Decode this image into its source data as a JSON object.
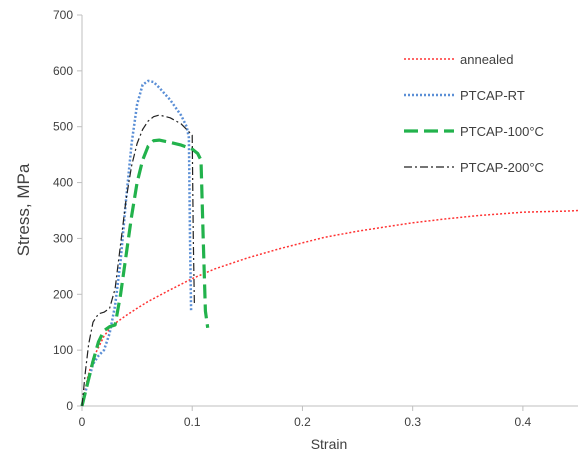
{
  "chart_data": {
    "type": "line",
    "title": "",
    "xlabel": "Strain",
    "ylabel": "Stress, MPa",
    "xlim": [
      0,
      0.45
    ],
    "ylim": [
      0,
      700
    ],
    "x_ticks": [
      "0",
      "0.1",
      "0.2",
      "0.3",
      "0.4"
    ],
    "y_ticks": [
      "0",
      "100",
      "200",
      "300",
      "400",
      "500",
      "600",
      "700"
    ],
    "grid": false,
    "legend_position": "top-right",
    "series": [
      {
        "name": "annealed",
        "color": "#ff3333",
        "style": "dotted-red",
        "points": [
          [
            0,
            0
          ],
          [
            0.005,
            50
          ],
          [
            0.01,
            85
          ],
          [
            0.015,
            105
          ],
          [
            0.02,
            125
          ],
          [
            0.025,
            138
          ],
          [
            0.03,
            148
          ],
          [
            0.04,
            162
          ],
          [
            0.05,
            175
          ],
          [
            0.06,
            187
          ],
          [
            0.08,
            208
          ],
          [
            0.1,
            228
          ],
          [
            0.12,
            245
          ],
          [
            0.15,
            265
          ],
          [
            0.18,
            282
          ],
          [
            0.2,
            292
          ],
          [
            0.22,
            302
          ],
          [
            0.25,
            313
          ],
          [
            0.28,
            322
          ],
          [
            0.3,
            328
          ],
          [
            0.33,
            335
          ],
          [
            0.36,
            341
          ],
          [
            0.38,
            344
          ],
          [
            0.4,
            347
          ],
          [
            0.42,
            348
          ],
          [
            0.44,
            349
          ],
          [
            0.45,
            350
          ]
        ]
      },
      {
        "name": "PTCAP-RT",
        "color": "#5b8fd6",
        "style": "dotted-blue",
        "points": [
          [
            0,
            0
          ],
          [
            0.005,
            40
          ],
          [
            0.01,
            75
          ],
          [
            0.015,
            90
          ],
          [
            0.02,
            100
          ],
          [
            0.025,
            130
          ],
          [
            0.03,
            180
          ],
          [
            0.035,
            260
          ],
          [
            0.04,
            370
          ],
          [
            0.045,
            470
          ],
          [
            0.05,
            540
          ],
          [
            0.055,
            575
          ],
          [
            0.06,
            582
          ],
          [
            0.065,
            580
          ],
          [
            0.07,
            570
          ],
          [
            0.08,
            548
          ],
          [
            0.09,
            520
          ],
          [
            0.095,
            500
          ],
          [
            0.097,
            480
          ],
          [
            0.098,
            300
          ],
          [
            0.099,
            170
          ]
        ]
      },
      {
        "name": "PTCAP-100°C",
        "color": "#22b24c",
        "style": "dashed-green",
        "points": [
          [
            0,
            0
          ],
          [
            0.005,
            40
          ],
          [
            0.01,
            80
          ],
          [
            0.015,
            115
          ],
          [
            0.02,
            135
          ],
          [
            0.025,
            142
          ],
          [
            0.03,
            145
          ],
          [
            0.035,
            200
          ],
          [
            0.04,
            270
          ],
          [
            0.045,
            340
          ],
          [
            0.05,
            400
          ],
          [
            0.055,
            440
          ],
          [
            0.06,
            465
          ],
          [
            0.065,
            475
          ],
          [
            0.07,
            476
          ],
          [
            0.08,
            472
          ],
          [
            0.09,
            467
          ],
          [
            0.1,
            460
          ],
          [
            0.105,
            452
          ],
          [
            0.108,
            440
          ],
          [
            0.11,
            300
          ],
          [
            0.112,
            170
          ],
          [
            0.114,
            140
          ]
        ]
      },
      {
        "name": "PTCAP-200°C",
        "color": "#222222",
        "style": "dashdot-black",
        "points": [
          [
            0,
            0
          ],
          [
            0.003,
            60
          ],
          [
            0.006,
            110
          ],
          [
            0.01,
            150
          ],
          [
            0.015,
            165
          ],
          [
            0.02,
            168
          ],
          [
            0.025,
            175
          ],
          [
            0.03,
            210
          ],
          [
            0.035,
            290
          ],
          [
            0.04,
            370
          ],
          [
            0.045,
            430
          ],
          [
            0.05,
            470
          ],
          [
            0.055,
            495
          ],
          [
            0.06,
            510
          ],
          [
            0.065,
            518
          ],
          [
            0.07,
            521
          ],
          [
            0.08,
            516
          ],
          [
            0.09,
            505
          ],
          [
            0.1,
            485
          ],
          [
            0.101,
            300
          ],
          [
            0.102,
            180
          ]
        ]
      }
    ]
  }
}
